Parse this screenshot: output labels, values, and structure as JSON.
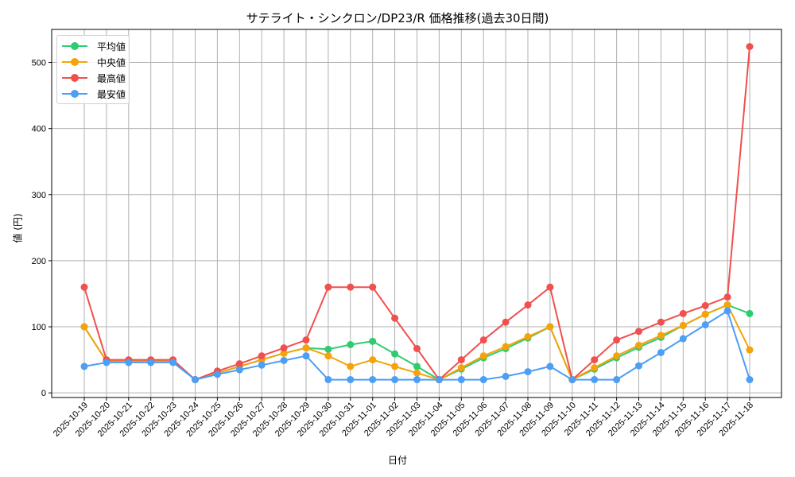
{
  "chart_data": {
    "type": "line",
    "title": "サテライト・シンクロン/DP23/R 価格推移(過去30日間)",
    "xlabel": "日付",
    "ylabel": "値 (円)",
    "ylim": [
      -7,
      550
    ],
    "yticks": [
      0,
      100,
      200,
      300,
      400,
      500
    ],
    "grid": true,
    "legend_position": "upper left",
    "x": [
      "2025-10-19",
      "2025-10-20",
      "2025-10-21",
      "2025-10-22",
      "2025-10-23",
      "2025-10-24",
      "2025-10-25",
      "2025-10-26",
      "2025-10-27",
      "2025-10-28",
      "2025-10-29",
      "2025-10-30",
      "2025-10-31",
      "2025-11-01",
      "2025-11-02",
      "2025-11-03",
      "2025-11-04",
      "2025-11-05",
      "2025-11-06",
      "2025-11-07",
      "2025-11-08",
      "2025-11-09",
      "2025-11-10",
      "2025-11-11",
      "2025-11-12",
      "2025-11-13",
      "2025-11-14",
      "2025-11-15",
      "2025-11-16",
      "2025-11-17",
      "2025-11-18"
    ],
    "series": [
      {
        "name": "平均値",
        "color": "#2ecc71",
        "values": [
          100,
          48,
          48,
          48,
          48,
          20,
          30,
          40,
          50,
          60,
          68,
          66,
          73,
          78,
          59,
          40,
          20,
          36,
          53,
          67,
          83,
          100,
          20,
          36,
          53,
          69,
          84,
          102,
          119,
          133,
          120
        ]
      },
      {
        "name": "中央値",
        "color": "#f5a30a",
        "values": [
          100,
          48,
          48,
          48,
          48,
          20,
          30,
          40,
          50,
          60,
          68,
          56,
          40,
          50,
          40,
          30,
          20,
          38,
          56,
          70,
          85,
          100,
          20,
          38,
          56,
          72,
          87,
          102,
          119,
          133,
          65
        ]
      },
      {
        "name": "最高値",
        "color": "#f0504e",
        "values": [
          160,
          50,
          50,
          50,
          50,
          20,
          33,
          44,
          56,
          68,
          80,
          160,
          160,
          160,
          113,
          67,
          20,
          50,
          80,
          107,
          133,
          160,
          20,
          50,
          80,
          93,
          107,
          120,
          132,
          145,
          524
        ]
      },
      {
        "name": "最安値",
        "color": "#4d9ef5",
        "values": [
          40,
          46,
          46,
          46,
          46,
          20,
          28,
          35,
          42,
          49,
          56,
          20,
          20,
          20,
          20,
          20,
          20,
          20,
          20,
          25,
          32,
          40,
          20,
          20,
          20,
          41,
          61,
          82,
          103,
          124,
          20
        ]
      }
    ]
  },
  "legend": {
    "items": [
      {
        "label": "平均値",
        "color": "#2ecc71"
      },
      {
        "label": "中央値",
        "color": "#f5a30a"
      },
      {
        "label": "最高値",
        "color": "#f0504e"
      },
      {
        "label": "最安値",
        "color": "#4d9ef5"
      }
    ]
  }
}
